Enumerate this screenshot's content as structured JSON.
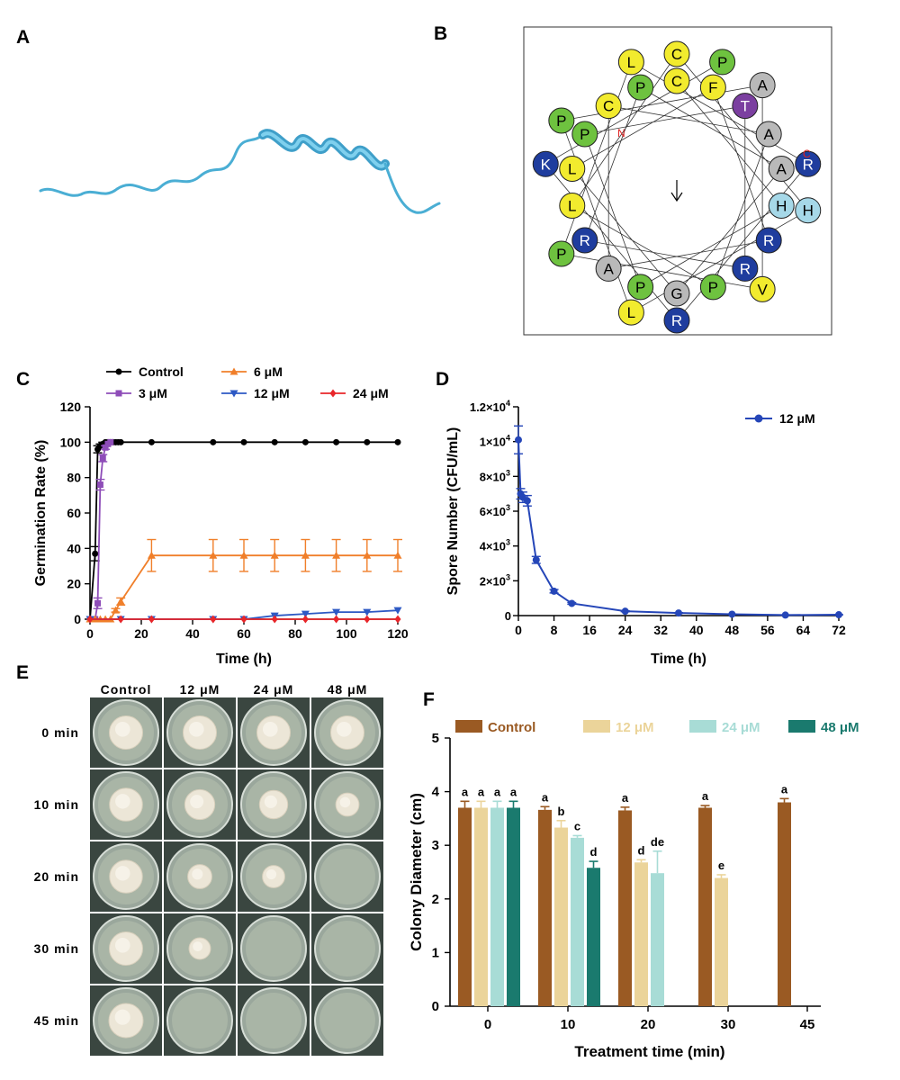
{
  "panels": {
    "A": "A",
    "B": "B",
    "C": "C",
    "D": "D",
    "E": "E",
    "F": "F"
  },
  "helical_wheel": {
    "n_label": "N",
    "c_label": "C",
    "colors": {
      "P": "#6ec23f",
      "R": "#1f3d9e",
      "K": "#1f3d9e",
      "C": "#f2eb2e",
      "L": "#f2eb2e",
      "V": "#f2eb2e",
      "F": "#f2eb2e",
      "H": "#a6d8e8",
      "A": "#b9b9b9",
      "G": "#b9b9b9",
      "T": "#7b3fa0"
    },
    "residues": [
      "C",
      "H",
      "P",
      "P",
      "T",
      "R",
      "R",
      "P",
      "A",
      "G",
      "L",
      "F",
      "R",
      "A",
      "C",
      "A",
      "P",
      "L",
      "C",
      "H",
      "L",
      "P",
      "A",
      "V",
      "P",
      "L",
      "R",
      "R",
      "K",
      "P"
    ]
  },
  "chart_data": [
    {
      "panel": "C",
      "type": "line",
      "xlabel": "Time (h)",
      "ylabel": "Germination Rate (%)",
      "xlim": [
        0,
        120
      ],
      "ylim": [
        0,
        120
      ],
      "xticks": [
        "0",
        "20",
        "40",
        "60",
        "80",
        "100",
        "120"
      ],
      "yticks": [
        "0",
        "20",
        "40",
        "60",
        "80",
        "100",
        "120"
      ],
      "legend_position": "top",
      "series": [
        {
          "name": "Control",
          "color": "#000000",
          "marker": "circle",
          "x": [
            0,
            2,
            3,
            4,
            5,
            6,
            7,
            8,
            9,
            10,
            11,
            12,
            24,
            48,
            60,
            72,
            84,
            96,
            108,
            120
          ],
          "y": [
            0,
            37,
            96,
            98,
            99,
            100,
            100,
            100,
            100,
            100,
            100,
            100,
            100,
            100,
            100,
            100,
            100,
            100,
            100,
            100
          ],
          "err": [
            0,
            4,
            2,
            1,
            1,
            0,
            0,
            0,
            0,
            0,
            0,
            0,
            0,
            0,
            0,
            0,
            0,
            0,
            0,
            0
          ]
        },
        {
          "name": "3 μM",
          "color": "#8e4db8",
          "marker": "square",
          "x": [
            0,
            2,
            3,
            4,
            5,
            6,
            7,
            8
          ],
          "y": [
            0,
            0,
            9,
            76,
            91,
            97,
            99,
            100
          ],
          "err": [
            0,
            0,
            3,
            3,
            2,
            1,
            0,
            0
          ]
        },
        {
          "name": "6 μM",
          "color": "#f07f2a",
          "marker": "triangle-up",
          "x": [
            0,
            2,
            4,
            6,
            8,
            10,
            12,
            24,
            48,
            60,
            72,
            84,
            96,
            108,
            120
          ],
          "y": [
            0,
            0,
            0,
            0,
            0,
            5,
            10,
            36,
            36,
            36,
            36,
            36,
            36,
            36,
            36
          ],
          "err": [
            0,
            0,
            0,
            0,
            0,
            1,
            2,
            9,
            9,
            9,
            9,
            9,
            9,
            9,
            9
          ]
        },
        {
          "name": "12 μM",
          "color": "#2d59c4",
          "marker": "triangle-down",
          "x": [
            0,
            12,
            24,
            48,
            60,
            72,
            84,
            96,
            108,
            120
          ],
          "y": [
            0,
            0,
            0,
            0,
            0,
            2,
            3,
            4,
            4,
            5
          ],
          "err": [
            0,
            0,
            0,
            0,
            0,
            0,
            0,
            0,
            0,
            0
          ]
        },
        {
          "name": "24 μM",
          "color": "#e8262a",
          "marker": "diamond",
          "x": [
            0,
            12,
            24,
            48,
            60,
            72,
            84,
            96,
            108,
            120
          ],
          "y": [
            0,
            0,
            0,
            0,
            0,
            0,
            0,
            0,
            0,
            0
          ],
          "err": [
            0,
            0,
            0,
            0,
            0,
            0,
            0,
            0,
            0,
            0
          ]
        }
      ]
    },
    {
      "panel": "D",
      "type": "line",
      "xlabel": "Time (h)",
      "ylabel": "Spore Number (CFU/mL)",
      "xlim": [
        0,
        72
      ],
      "ylim": [
        0,
        12000
      ],
      "xticks": [
        "0",
        "8",
        "16",
        "24",
        "32",
        "40",
        "48",
        "56",
        "64",
        "72"
      ],
      "yticks": [
        {
          "mant": "0",
          "exp": ""
        },
        {
          "mant": "2×10",
          "exp": "3"
        },
        {
          "mant": "4×10",
          "exp": "3"
        },
        {
          "mant": "6×10",
          "exp": "3"
        },
        {
          "mant": "8×10",
          "exp": "3"
        },
        {
          "mant": "1×10",
          "exp": "4"
        },
        {
          "mant": "1.2×10",
          "exp": "4"
        }
      ],
      "legend_position": "top-right",
      "series": [
        {
          "name": "12 μM",
          "color": "#2546b8",
          "marker": "circle",
          "x": [
            0,
            0.5,
            1,
            2,
            4,
            8,
            12,
            24,
            36,
            48,
            60,
            72
          ],
          "y": [
            10100,
            7000,
            6800,
            6600,
            3200,
            1400,
            700,
            250,
            150,
            80,
            30,
            50
          ],
          "err": [
            800,
            300,
            300,
            300,
            200,
            100,
            50,
            30,
            20,
            10,
            5,
            5
          ]
        }
      ]
    },
    {
      "panel": "F",
      "type": "bar",
      "xlabel": "Treatment time (min)",
      "ylabel": "Colony Diameter (cm)",
      "ylim": [
        0,
        5
      ],
      "yticks": [
        "0",
        "1",
        "2",
        "3",
        "4",
        "5"
      ],
      "categories": [
        "0",
        "10",
        "20",
        "30",
        "45"
      ],
      "legend_position": "top",
      "series": [
        {
          "name": "Control",
          "color": "#9a5a23",
          "values": [
            3.7,
            3.66,
            3.65,
            3.7,
            3.8
          ],
          "err": [
            0.12,
            0.06,
            0.06,
            0.04,
            0.07
          ],
          "letters": [
            "a",
            "a",
            "a",
            "a",
            "a"
          ]
        },
        {
          "name": "12 μM",
          "color": "#ebd49a",
          "values": [
            3.7,
            3.33,
            2.68,
            2.39,
            null
          ],
          "err": [
            0.12,
            0.13,
            0.05,
            0.06,
            null
          ],
          "letters": [
            "a",
            "b",
            "d",
            "e",
            ""
          ]
        },
        {
          "name": "24 μM",
          "color": "#a8dcd6",
          "values": [
            3.7,
            3.14,
            2.48,
            null,
            null
          ],
          "err": [
            0.12,
            0.04,
            0.41,
            null,
            null
          ],
          "letters": [
            "a",
            "c",
            "de",
            "",
            ""
          ]
        },
        {
          "name": "48 μM",
          "color": "#1a7a6e",
          "values": [
            3.7,
            2.58,
            null,
            null,
            null
          ],
          "err": [
            0.12,
            0.12,
            null,
            null,
            null
          ],
          "letters": [
            "a",
            "d",
            "",
            "",
            ""
          ]
        }
      ]
    }
  ],
  "photo_grid": {
    "columns": [
      "Control",
      "12 μM",
      "24 μM",
      "48 μM"
    ],
    "rows": [
      "0 min",
      "10 min",
      "20 min",
      "30 min",
      "45 min"
    ],
    "colony_diameter_cm": [
      [
        3.7,
        3.7,
        3.7,
        3.7
      ],
      [
        3.66,
        3.33,
        3.14,
        2.58
      ],
      [
        3.65,
        2.68,
        2.48,
        0
      ],
      [
        3.7,
        2.39,
        0,
        0
      ],
      [
        3.8,
        0,
        0,
        0
      ]
    ]
  }
}
